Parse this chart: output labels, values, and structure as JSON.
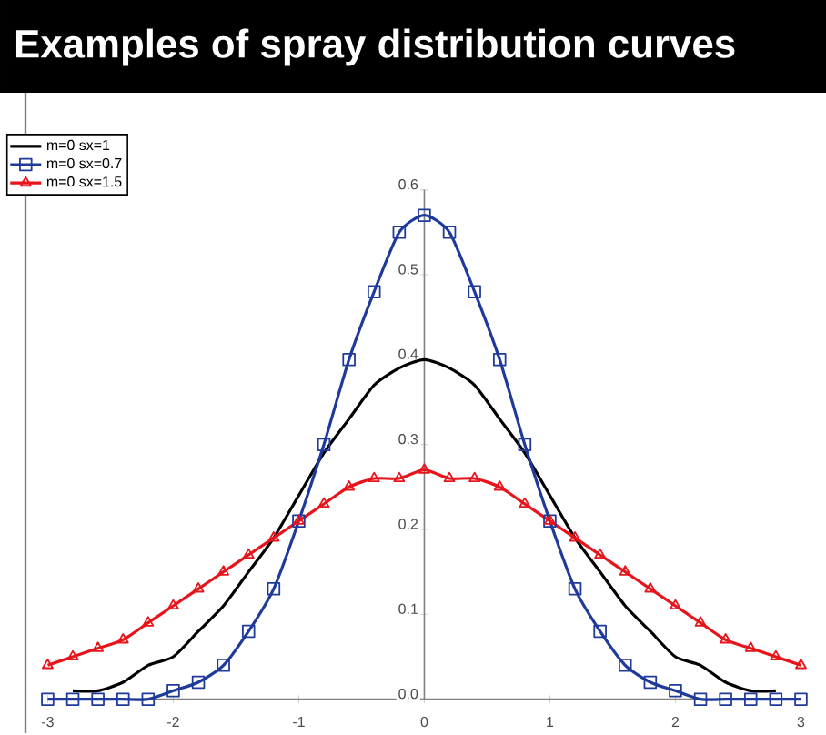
{
  "chart_data": {
    "type": "line",
    "title": "Examples of spray distribution curves",
    "xlim": [
      -3,
      3
    ],
    "xticks": [
      -3,
      -2,
      -1,
      0,
      1,
      2,
      3
    ],
    "ylim": [
      0,
      0.6
    ],
    "yticks": [
      {
        "value": 0,
        "label": "0.0"
      },
      {
        "value": 0.1,
        "label": "0.1"
      },
      {
        "value": 0.2,
        "label": "0.2"
      },
      {
        "value": 0.3,
        "label": "0.3"
      },
      {
        "value": 0.4,
        "label": "0.4"
      },
      {
        "value": 0.5,
        "label": "0.5"
      },
      {
        "value": 0.6,
        "label": "0.6"
      }
    ],
    "legend": "top left",
    "grid": false,
    "series": [
      {
        "name": "m=0 sx=1",
        "color": "#000000",
        "marker": "none",
        "x": [
          -2.8,
          -2.6,
          -2.4,
          -2.2,
          -2,
          -1.8,
          -1.6,
          -1.4,
          -1.2,
          -1,
          -0.8,
          -0.6,
          -0.4,
          -0.2,
          0,
          0.2,
          0.4,
          0.6,
          0.8,
          1,
          1.2,
          1.4,
          1.6,
          1.8,
          2,
          2.2,
          2.4,
          2.6,
          2.8
        ],
        "values": [
          0.01,
          0.01,
          0.02,
          0.04,
          0.05,
          0.08,
          0.11,
          0.15,
          0.19,
          0.24,
          0.29,
          0.33,
          0.37,
          0.39,
          0.4,
          0.39,
          0.37,
          0.33,
          0.29,
          0.24,
          0.19,
          0.15,
          0.11,
          0.08,
          0.05,
          0.04,
          0.02,
          0.01,
          0.01
        ]
      },
      {
        "name": "m=0 sx=0.7",
        "color": "#1f3a9a",
        "marker": "square",
        "x": [
          -3,
          -2.8,
          -2.6,
          -2.4,
          -2.2,
          -2,
          -1.8,
          -1.6,
          -1.4,
          -1.2,
          -1,
          -0.8,
          -0.6,
          -0.4,
          -0.2,
          0,
          0.2,
          0.4,
          0.6,
          0.8,
          1,
          1.2,
          1.4,
          1.6,
          1.8,
          2,
          2.2,
          2.4,
          2.6,
          2.8,
          3
        ],
        "values": [
          0,
          0,
          0,
          0,
          0,
          0.01,
          0.02,
          0.04,
          0.08,
          0.13,
          0.21,
          0.3,
          0.4,
          0.48,
          0.55,
          0.57,
          0.55,
          0.48,
          0.4,
          0.3,
          0.21,
          0.13,
          0.08,
          0.04,
          0.02,
          0.01,
          0,
          0,
          0,
          0,
          0
        ]
      },
      {
        "name": "m=0 sx=1.5",
        "color": "#e8141c",
        "marker": "triangle",
        "x": [
          -3,
          -2.8,
          -2.6,
          -2.4,
          -2.2,
          -2,
          -1.8,
          -1.6,
          -1.4,
          -1.2,
          -1,
          -0.8,
          -0.6,
          -0.4,
          -0.2,
          0,
          0.2,
          0.4,
          0.6,
          0.8,
          1,
          1.2,
          1.4,
          1.6,
          1.8,
          2,
          2.2,
          2.4,
          2.6,
          2.8,
          3
        ],
        "values": [
          0.04,
          0.05,
          0.06,
          0.07,
          0.09,
          0.11,
          0.13,
          0.15,
          0.17,
          0.19,
          0.21,
          0.23,
          0.25,
          0.26,
          0.26,
          0.27,
          0.26,
          0.26,
          0.25,
          0.23,
          0.21,
          0.19,
          0.17,
          0.15,
          0.13,
          0.11,
          0.09,
          0.07,
          0.06,
          0.05,
          0.04
        ]
      }
    ]
  }
}
